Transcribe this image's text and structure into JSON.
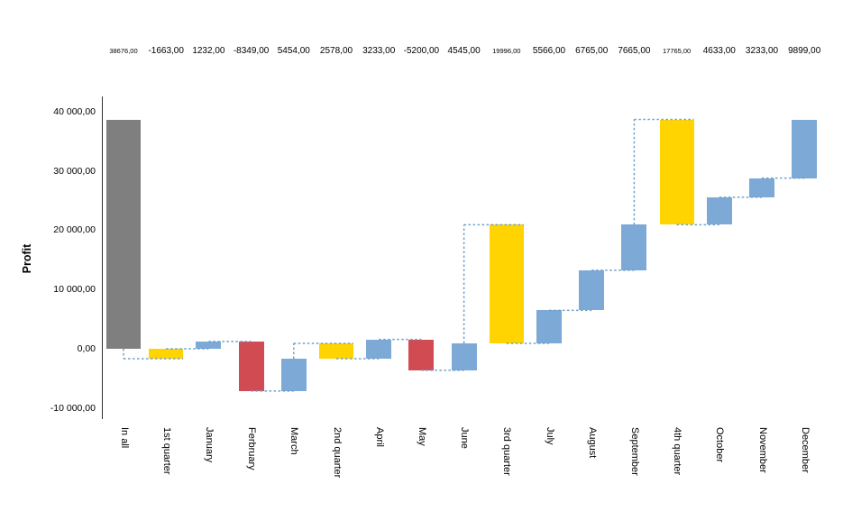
{
  "chart_data": {
    "type": "bar",
    "subtype": "waterfall",
    "title": "",
    "ylabel": "Profit",
    "ylim": [
      -10000,
      40000
    ],
    "grid": false,
    "legend": "none",
    "y_ticks": [
      {
        "value": 40000,
        "label": "40 000,00"
      },
      {
        "value": 30000,
        "label": "30 000,00"
      },
      {
        "value": 20000,
        "label": "20 000,00"
      },
      {
        "value": 10000,
        "label": "10 000,00"
      },
      {
        "value": 0,
        "label": "0,00"
      },
      {
        "value": -10000,
        "label": "-10 000,00"
      }
    ],
    "categories": [
      "In all",
      "1st quarter",
      "January",
      "Ferbruary",
      "March",
      "2nd quarter",
      "April",
      "May",
      "June",
      "3rd quarter",
      "July",
      "August",
      "September",
      "4th quarter",
      "October",
      "November",
      "December"
    ],
    "bars": [
      {
        "label": "In all",
        "kind": "total",
        "value": 38676,
        "value_label": "38676,00",
        "small_label": true,
        "start": 0,
        "end": 38676
      },
      {
        "label": "1st quarter",
        "kind": "subtotal",
        "value": -1663,
        "value_label": "-1663,00",
        "small_label": false,
        "start": 0,
        "end": -1663
      },
      {
        "label": "January",
        "kind": "up",
        "value": 1232,
        "value_label": "1232,00",
        "small_label": false,
        "start": 0,
        "end": 1232
      },
      {
        "label": "Ferbruary",
        "kind": "down",
        "value": -8349,
        "value_label": "-8349,00",
        "small_label": false,
        "start": 1232,
        "end": -7117
      },
      {
        "label": "March",
        "kind": "up",
        "value": 5454,
        "value_label": "5454,00",
        "small_label": false,
        "start": -7117,
        "end": -1663
      },
      {
        "label": "2nd quarter",
        "kind": "subtotal",
        "value": 2578,
        "value_label": "2578,00",
        "small_label": false,
        "start": -1663,
        "end": 915
      },
      {
        "label": "April",
        "kind": "up",
        "value": 3233,
        "value_label": "3233,00",
        "small_label": false,
        "start": -1663,
        "end": 1570
      },
      {
        "label": "May",
        "kind": "down",
        "value": -5200,
        "value_label": "-5200,00",
        "small_label": false,
        "start": 1570,
        "end": -3630
      },
      {
        "label": "June",
        "kind": "up",
        "value": 4545,
        "value_label": "4545,00",
        "small_label": false,
        "start": -3630,
        "end": 915
      },
      {
        "label": "3rd quarter",
        "kind": "subtotal",
        "value": 19996,
        "value_label": "19996,00",
        "small_label": true,
        "start": 915,
        "end": 20911
      },
      {
        "label": "July",
        "kind": "up",
        "value": 5566,
        "value_label": "5566,00",
        "small_label": false,
        "start": 915,
        "end": 6481
      },
      {
        "label": "August",
        "kind": "up",
        "value": 6765,
        "value_label": "6765,00",
        "small_label": false,
        "start": 6481,
        "end": 13246
      },
      {
        "label": "September",
        "kind": "up",
        "value": 7665,
        "value_label": "7665,00",
        "small_label": false,
        "start": 13246,
        "end": 20911
      },
      {
        "label": "4th quarter",
        "kind": "subtotal",
        "value": 17765,
        "value_label": "17765,00",
        "small_label": true,
        "start": 20911,
        "end": 38676
      },
      {
        "label": "October",
        "kind": "up",
        "value": 4633,
        "value_label": "4633,00",
        "small_label": false,
        "start": 20911,
        "end": 25544
      },
      {
        "label": "November",
        "kind": "up",
        "value": 3233,
        "value_label": "3233,00",
        "small_label": false,
        "start": 25544,
        "end": 28777
      },
      {
        "label": "December",
        "kind": "up",
        "value": 9899,
        "value_label": "9899,00",
        "small_label": false,
        "start": 28777,
        "end": 38676
      }
    ],
    "colors": {
      "total": "#7F7F7F",
      "subtotal": "#FFD400",
      "up": "#7CA9D6",
      "down": "#D14B52",
      "connector": "#6FA0CE",
      "axis": "#333333",
      "text": "#000000"
    }
  }
}
